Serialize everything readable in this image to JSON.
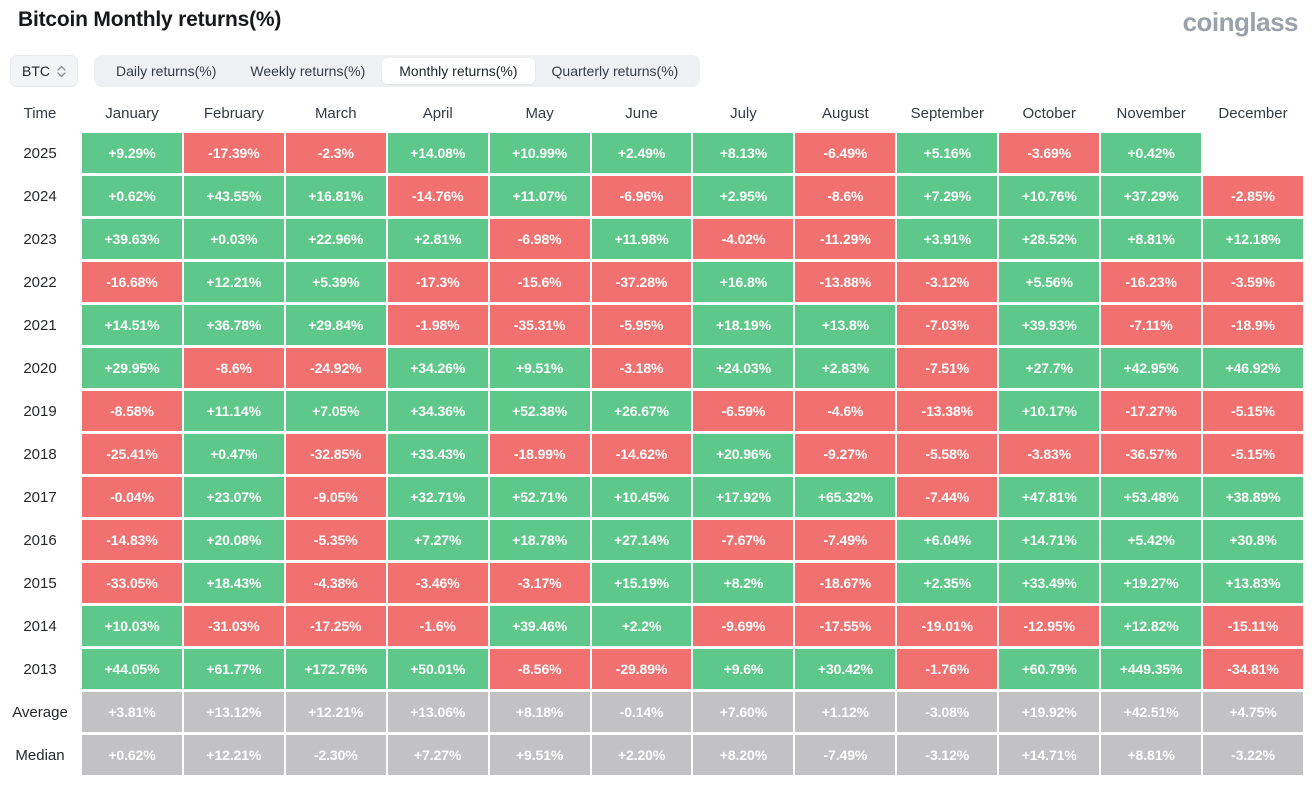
{
  "page": {
    "title": "Bitcoin Monthly returns(%)",
    "brand": "coinglass"
  },
  "controls": {
    "coin_selector": {
      "value": "BTC",
      "icon": "updown-arrows-icon"
    },
    "tabs": [
      {
        "label": "Daily returns(%)",
        "selected": false
      },
      {
        "label": "Weekly returns(%)",
        "selected": false
      },
      {
        "label": "Monthly returns(%)",
        "selected": true
      },
      {
        "label": "Quarterly returns(%)",
        "selected": false
      }
    ]
  },
  "chart_data": {
    "type": "heatmap",
    "title": "Bitcoin Monthly returns(%)",
    "legend": "cell color encodes sign of return: green positive, red negative, gray summary rows",
    "columns": [
      "Time",
      "January",
      "February",
      "March",
      "April",
      "May",
      "June",
      "July",
      "August",
      "September",
      "October",
      "November",
      "December"
    ],
    "rows": [
      {
        "label": "2025",
        "kind": "year",
        "values": [
          "+9.29%",
          "-17.39%",
          "-2.3%",
          "+14.08%",
          "+10.99%",
          "+2.49%",
          "+8.13%",
          "-6.49%",
          "+5.16%",
          "-3.69%",
          "+0.42%",
          ""
        ]
      },
      {
        "label": "2024",
        "kind": "year",
        "values": [
          "+0.62%",
          "+43.55%",
          "+16.81%",
          "-14.76%",
          "+11.07%",
          "-6.96%",
          "+2.95%",
          "-8.6%",
          "+7.29%",
          "+10.76%",
          "+37.29%",
          "-2.85%"
        ]
      },
      {
        "label": "2023",
        "kind": "year",
        "values": [
          "+39.63%",
          "+0.03%",
          "+22.96%",
          "+2.81%",
          "-6.98%",
          "+11.98%",
          "-4.02%",
          "-11.29%",
          "+3.91%",
          "+28.52%",
          "+8.81%",
          "+12.18%"
        ]
      },
      {
        "label": "2022",
        "kind": "year",
        "values": [
          "-16.68%",
          "+12.21%",
          "+5.39%",
          "-17.3%",
          "-15.6%",
          "-37.28%",
          "+16.8%",
          "-13.88%",
          "-3.12%",
          "+5.56%",
          "-16.23%",
          "-3.59%"
        ]
      },
      {
        "label": "2021",
        "kind": "year",
        "values": [
          "+14.51%",
          "+36.78%",
          "+29.84%",
          "-1.98%",
          "-35.31%",
          "-5.95%",
          "+18.19%",
          "+13.8%",
          "-7.03%",
          "+39.93%",
          "-7.11%",
          "-18.9%"
        ]
      },
      {
        "label": "2020",
        "kind": "year",
        "values": [
          "+29.95%",
          "-8.6%",
          "-24.92%",
          "+34.26%",
          "+9.51%",
          "-3.18%",
          "+24.03%",
          "+2.83%",
          "-7.51%",
          "+27.7%",
          "+42.95%",
          "+46.92%"
        ]
      },
      {
        "label": "2019",
        "kind": "year",
        "values": [
          "-8.58%",
          "+11.14%",
          "+7.05%",
          "+34.36%",
          "+52.38%",
          "+26.67%",
          "-6.59%",
          "-4.6%",
          "-13.38%",
          "+10.17%",
          "-17.27%",
          "-5.15%"
        ]
      },
      {
        "label": "2018",
        "kind": "year",
        "values": [
          "-25.41%",
          "+0.47%",
          "-32.85%",
          "+33.43%",
          "-18.99%",
          "-14.62%",
          "+20.96%",
          "-9.27%",
          "-5.58%",
          "-3.83%",
          "-36.57%",
          "-5.15%"
        ]
      },
      {
        "label": "2017",
        "kind": "year",
        "values": [
          "-0.04%",
          "+23.07%",
          "-9.05%",
          "+32.71%",
          "+52.71%",
          "+10.45%",
          "+17.92%",
          "+65.32%",
          "-7.44%",
          "+47.81%",
          "+53.48%",
          "+38.89%"
        ]
      },
      {
        "label": "2016",
        "kind": "year",
        "values": [
          "-14.83%",
          "+20.08%",
          "-5.35%",
          "+7.27%",
          "+18.78%",
          "+27.14%",
          "-7.67%",
          "-7.49%",
          "+6.04%",
          "+14.71%",
          "+5.42%",
          "+30.8%"
        ]
      },
      {
        "label": "2015",
        "kind": "year",
        "values": [
          "-33.05%",
          "+18.43%",
          "-4.38%",
          "-3.46%",
          "-3.17%",
          "+15.19%",
          "+8.2%",
          "-18.67%",
          "+2.35%",
          "+33.49%",
          "+19.27%",
          "+13.83%"
        ]
      },
      {
        "label": "2014",
        "kind": "year",
        "values": [
          "+10.03%",
          "-31.03%",
          "-17.25%",
          "-1.6%",
          "+39.46%",
          "+2.2%",
          "-9.69%",
          "-17.55%",
          "-19.01%",
          "-12.95%",
          "+12.82%",
          "-15.11%"
        ]
      },
      {
        "label": "2013",
        "kind": "year",
        "values": [
          "+44.05%",
          "+61.77%",
          "+172.76%",
          "+50.01%",
          "-8.56%",
          "-29.89%",
          "+9.6%",
          "+30.42%",
          "-1.76%",
          "+60.79%",
          "+449.35%",
          "-34.81%"
        ]
      },
      {
        "label": "Average",
        "kind": "summary",
        "values": [
          "+3.81%",
          "+13.12%",
          "+12.21%",
          "+13.06%",
          "+8.18%",
          "-0.14%",
          "+7.60%",
          "+1.12%",
          "-3.08%",
          "+19.92%",
          "+42.51%",
          "+4.75%"
        ]
      },
      {
        "label": "Median",
        "kind": "summary",
        "values": [
          "+0.62%",
          "+12.21%",
          "-2.30%",
          "+7.27%",
          "+9.51%",
          "+2.20%",
          "+8.20%",
          "-7.49%",
          "-3.12%",
          "+14.71%",
          "+8.81%",
          "-3.22%"
        ]
      }
    ],
    "colors": {
      "positive": "#5dc88a",
      "negative": "#f0716f",
      "summary": "#c2c2c4"
    }
  }
}
